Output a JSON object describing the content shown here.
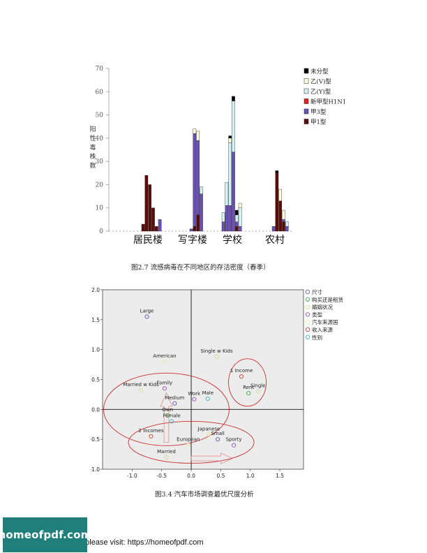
{
  "figure1": {
    "caption": "图2.7  流感病毒在不同地区的存活密度（春季）",
    "chart_data": {
      "type": "bar",
      "ylabel": "阳性毒株数",
      "ylim": [
        0,
        70
      ],
      "yticks": [
        0,
        10,
        20,
        30,
        40,
        50,
        60,
        70
      ],
      "groups": [
        "居民楼",
        "写字楼",
        "学校",
        "农村"
      ],
      "legend_position": "top-right",
      "series": [
        {
          "name": "未分型",
          "color": "#000000"
        },
        {
          "name": "乙(V)型",
          "color": "#ffffe0"
        },
        {
          "name": "乙(Y)型",
          "color": "#d4f2f6"
        },
        {
          "name": "新甲型H1N1",
          "color": "#e02020"
        },
        {
          "name": "甲3型",
          "color": "#6a4fb5"
        },
        {
          "name": "甲1型",
          "color": "#5b0a0a"
        }
      ],
      "bars": [
        {
          "group": "居民楼",
          "stack": {
            "甲1型": 3,
            "未分型": 0
          }
        },
        {
          "group": "居民楼",
          "stack": {
            "甲1型": 24
          }
        },
        {
          "group": "居民楼",
          "stack": {
            "甲1型": 20
          }
        },
        {
          "group": "居民楼",
          "stack": {
            "甲1型": 10
          }
        },
        {
          "group": "居民楼",
          "stack": {
            "甲1型": 2
          }
        },
        {
          "group": "居民楼",
          "stack": {
            "甲3型": 5
          }
        },
        {
          "group": "写字楼",
          "stack": {
            "甲3型": 1
          }
        },
        {
          "group": "写字楼",
          "stack": {
            "甲1型": 2,
            "甲3型": 40,
            "乙(V)型": 2
          }
        },
        {
          "group": "写字楼",
          "stack": {
            "甲1型": 7,
            "甲3型": 32,
            "乙(V)型": 4
          }
        },
        {
          "group": "写字楼",
          "stack": {
            "甲3型": 16,
            "乙(Y)型": 3
          }
        },
        {
          "group": "学校",
          "stack": {
            "甲3型": 4,
            "乙(Y)型": 4
          }
        },
        {
          "group": "学校",
          "stack": {
            "甲3型": 11,
            "乙(Y)型": 10
          }
        },
        {
          "group": "学校",
          "stack": {
            "甲3型": 11,
            "乙(Y)型": 27,
            "乙(V)型": 2,
            "未分型": 1
          }
        },
        {
          "group": "学校",
          "stack": {
            "甲3型": 34,
            "乙(Y)型": 22,
            "未分型": 2
          }
        },
        {
          "group": "学校",
          "stack": {
            "甲1型": 2,
            "甲3型": 2,
            "乙(Y)型": 3,
            "未分型": 2
          }
        },
        {
          "group": "学校",
          "stack": {
            "甲3型": 2,
            "乙(Y)型": 8,
            "乙(V)型": 2
          }
        },
        {
          "group": "农村",
          "stack": {
            "甲3型": 2
          }
        },
        {
          "group": "农村",
          "stack": {
            "甲1型": 25,
            "未分型": 1
          }
        },
        {
          "group": "农村",
          "stack": {
            "甲1型": 13,
            "乙(V)型": 5
          }
        },
        {
          "group": "农村",
          "stack": {
            "甲1型": 4,
            "甲3型": 1,
            "乙(V)型": 4
          }
        },
        {
          "group": "农村",
          "stack": {
            "甲3型": 2,
            "乙(Y)型": 2
          }
        }
      ]
    }
  },
  "figure2": {
    "caption": "图3.4   汽车市场调查最优尺度分析",
    "chart_data": {
      "type": "scatter",
      "xlim": [
        -1.5,
        1.9
      ],
      "ylim": [
        -1.0,
        2.0
      ],
      "xticks": [
        "-1.0",
        "-0.5",
        "0.0",
        "0.5",
        "1.0",
        "1.5"
      ],
      "yticks": [
        "2.0",
        "1.5",
        "1.0",
        "0.5",
        "0.0",
        "-0.5",
        "-1.0"
      ],
      "legend_position": "right",
      "series": [
        {
          "name": "尺寸",
          "color": "#5b5bb0",
          "points": [
            {
              "label": "Large",
              "x": -0.75,
              "y": 1.55
            },
            {
              "label": "Medium",
              "x": -0.28,
              "y": 0.1
            },
            {
              "label": "Small",
              "x": 0.45,
              "y": -0.5
            }
          ]
        },
        {
          "name": "购买还是租赁",
          "color": "#3aa84a",
          "points": [
            {
              "label": "Rent",
              "x": 0.97,
              "y": 0.27
            },
            {
              "label": "Own",
              "x": -0.4,
              "y": -0.1
            }
          ]
        },
        {
          "name": "婚姻状况",
          "color": "#d8d890",
          "points": [
            {
              "label": "Single w Kids",
              "x": 0.43,
              "y": 0.88
            },
            {
              "label": "Married w Kids",
              "x": -0.85,
              "y": 0.32
            },
            {
              "label": "Single",
              "x": 1.13,
              "y": 0.3
            },
            {
              "label": "Married",
              "x": -0.42,
              "y": -0.8
            }
          ]
        },
        {
          "name": "类型",
          "color": "#9a4fb5",
          "points": [
            {
              "label": "Family",
              "x": -0.45,
              "y": 0.35
            },
            {
              "label": "Work",
              "x": 0.05,
              "y": 0.17
            },
            {
              "label": "Sporty",
              "x": 0.72,
              "y": -0.6
            }
          ]
        },
        {
          "name": "汽车来源国",
          "color": "#e8e8a0",
          "points": [
            {
              "label": "American",
              "x": -0.45,
              "y": 0.8
            },
            {
              "label": "European",
              "x": -0.05,
              "y": -0.6
            },
            {
              "label": "Japanese",
              "x": 0.3,
              "y": -0.42
            }
          ]
        },
        {
          "name": "收入来源",
          "color": "#d43a3a",
          "points": [
            {
              "label": "1 Income",
              "x": 0.85,
              "y": 0.55
            },
            {
              "label": "2 Incomes",
              "x": -0.68,
              "y": -0.45
            }
          ]
        },
        {
          "name": "性别",
          "color": "#3ab5c8",
          "points": [
            {
              "label": "Male",
              "x": 0.28,
              "y": 0.18
            },
            {
              "label": "Female",
              "x": -0.33,
              "y": -0.2
            }
          ]
        }
      ]
    }
  },
  "footer": {
    "logo_text": "homeofpdf.com",
    "visit_text": "e please visit: https://homeofpdf.com"
  }
}
